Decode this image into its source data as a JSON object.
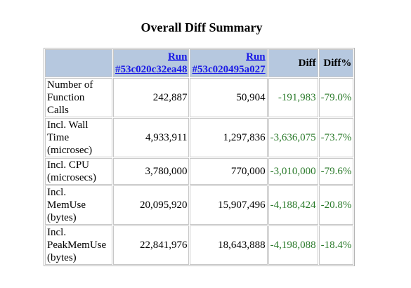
{
  "title": "Overall Diff Summary",
  "colors": {
    "header_bg": "#b6c8df",
    "link": "#1a1ae6",
    "negative": "#2a7a2a",
    "border": "#c8c8c8"
  },
  "header": {
    "run1_line1": "Run",
    "run1_line2": "#53c020c32ea48",
    "run2_line1": "Run",
    "run2_line2": "#53c020495a027",
    "diff": "Diff",
    "diff_pct": "Diff%"
  },
  "rows": [
    {
      "m1": "Number of",
      "m2": "Function",
      "m3": "Calls",
      "run1": "242,887",
      "run2": "50,904",
      "diff": "-191,983",
      "pct": "-79.0%"
    },
    {
      "m1": "Incl. Wall",
      "m2": "Time",
      "m3": "(microsec)",
      "run1": "4,933,911",
      "run2": "1,297,836",
      "diff": "-3,636,075",
      "pct": "-73.7%"
    },
    {
      "m1": "Incl. CPU",
      "m2": "(microsecs)",
      "run1": "3,780,000",
      "run2": "770,000",
      "diff": "-3,010,000",
      "pct": "-79.6%"
    },
    {
      "m1": "Incl.",
      "m2": "MemUse",
      "m3": "(bytes)",
      "run1": "20,095,920",
      "run2": "15,907,496",
      "diff": "-4,188,424",
      "pct": "-20.8%"
    },
    {
      "m1": "Incl.",
      "m2": "PeakMemUse",
      "m3": "(bytes)",
      "run1": "22,841,976",
      "run2": "18,643,888",
      "diff": "-4,198,088",
      "pct": "-18.4%"
    }
  ]
}
